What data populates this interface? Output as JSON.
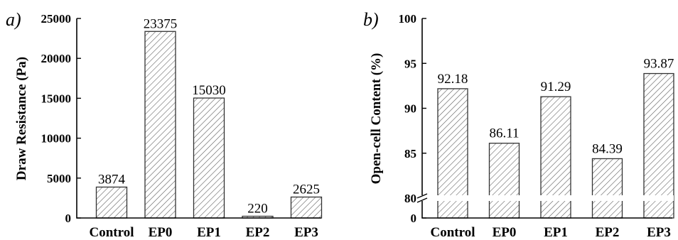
{
  "chart_data": [
    {
      "type": "bar",
      "panel_label": "a)",
      "categories": [
        "Control",
        "EP0",
        "EP1",
        "EP2",
        "EP3"
      ],
      "values": [
        3874,
        23375,
        15030,
        220,
        2625
      ],
      "data_labels": [
        "3874",
        "23375",
        "15030",
        "220",
        "2625"
      ],
      "yticks": [
        0,
        5000,
        10000,
        15000,
        20000,
        25000
      ],
      "ylim": [
        0,
        25000
      ],
      "ylabel": "Draw Resistance (Pa)",
      "xlabel": "",
      "grid": false,
      "bar_pattern": "diagonal-hatch"
    },
    {
      "type": "bar",
      "panel_label": "b)",
      "categories": [
        "Control",
        "EP0",
        "EP1",
        "EP2",
        "EP3"
      ],
      "values": [
        92.18,
        86.11,
        91.29,
        84.39,
        93.87
      ],
      "data_labels": [
        "92.18",
        "86.11",
        "91.29",
        "84.39",
        "93.87"
      ],
      "yticks": [
        80,
        85,
        90,
        95,
        100
      ],
      "bottom_tick": 0,
      "ylim": [
        80,
        100
      ],
      "axis_break": true,
      "ylabel": "Open-cell Content (%)",
      "xlabel": "",
      "grid": false,
      "bar_pattern": "diagonal-hatch"
    }
  ],
  "colors": {
    "bar_fill": "#ffffff",
    "hatch": "#555555",
    "axis": "#000000"
  }
}
